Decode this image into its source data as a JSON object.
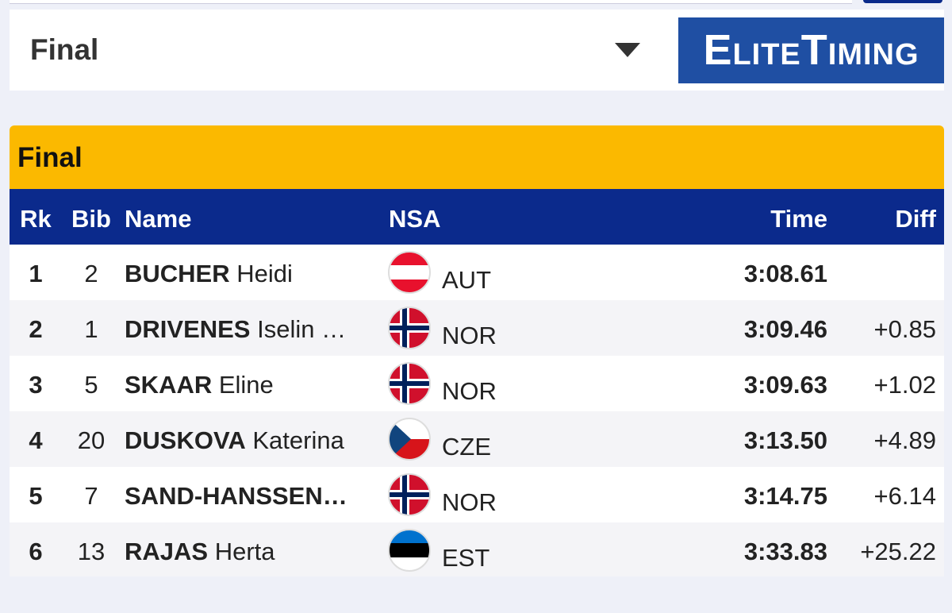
{
  "header": {
    "title": "Final",
    "logo": "EliteTiming"
  },
  "table": {
    "title": "Final",
    "columns": [
      "Rk",
      "Bib",
      "Name",
      "NSA",
      "Time",
      "Diff"
    ],
    "rows": [
      {
        "rank": "1",
        "bib": "2",
        "surname": "BUCHER",
        "given": "Heidi",
        "nsa": "AUT",
        "time": "3:08.61"
      },
      {
        "rank": "2",
        "bib": "1",
        "surname": "DRIVENES",
        "given": "Iselin …",
        "nsa": "NOR",
        "time": "3:09.46",
        "diff": "+0.85"
      },
      {
        "rank": "3",
        "bib": "5",
        "surname": "SKAAR",
        "given": "Eline",
        "nsa": "NOR",
        "time": "3:09.63",
        "diff": "+1.02"
      },
      {
        "rank": "4",
        "bib": "20",
        "surname": "DUSKOVA",
        "given": "Katerina",
        "nsa": "CZE",
        "time": "3:13.50",
        "diff": "+4.89"
      },
      {
        "rank": "5",
        "bib": "7",
        "surname": "SAND-HANSSEN…",
        "nsa": "NOR",
        "time": "3:14.75",
        "diff": "+6.14"
      },
      {
        "rank": "6",
        "bib": "13",
        "surname": "RAJAS",
        "given": "Herta",
        "nsa": "EST",
        "time": "3:33.83",
        "diff": "+25.22"
      }
    ]
  }
}
